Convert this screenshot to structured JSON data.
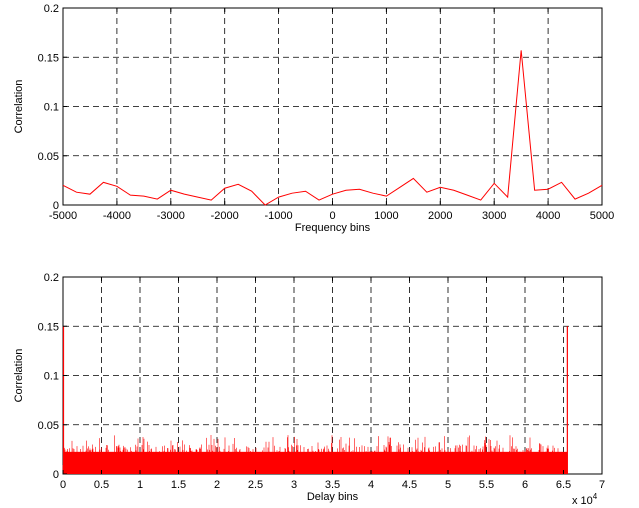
{
  "colors": {
    "series": "#ff0000",
    "axis": "#000000",
    "grid": "#000000",
    "background": "#ffffff"
  },
  "chart_data": [
    {
      "type": "line",
      "title": "",
      "xlabel": "Frequency bins",
      "ylabel": "Correlation",
      "xlim": [
        -5000,
        5000
      ],
      "ylim": [
        0,
        0.2
      ],
      "xticks": [
        -5000,
        -4000,
        -3000,
        -2000,
        -1000,
        0,
        1000,
        2000,
        3000,
        4000,
        5000
      ],
      "xtick_labels": [
        "-5000",
        "-4000",
        "-3000",
        "-2000",
        "-1000",
        "0",
        "1000",
        "2000",
        "3000",
        "4000",
        "5000"
      ],
      "yticks": [
        0,
        0.05,
        0.1,
        0.15,
        0.2
      ],
      "ytick_labels": [
        "0",
        "0.05",
        "0.1",
        "0.15",
        "0.2"
      ],
      "grid": true,
      "grid_style": "dashed",
      "series": [
        {
          "color": "#ff0000",
          "x": [
            -5000,
            -4750,
            -4500,
            -4250,
            -4000,
            -3750,
            -3500,
            -3250,
            -3000,
            -2750,
            -2500,
            -2250,
            -2000,
            -1750,
            -1500,
            -1250,
            -1000,
            -750,
            -500,
            -250,
            0,
            250,
            500,
            750,
            1000,
            1250,
            1500,
            1750,
            2000,
            2250,
            2500,
            2750,
            3000,
            3250,
            3500,
            3750,
            4000,
            4250,
            4500,
            4750,
            5000
          ],
          "y": [
            0.02,
            0.013,
            0.011,
            0.023,
            0.019,
            0.01,
            0.009,
            0.006,
            0.015,
            0.011,
            0.008,
            0.005,
            0.017,
            0.021,
            0.014,
            0.0,
            0.008,
            0.012,
            0.014,
            0.005,
            0.011,
            0.015,
            0.016,
            0.012,
            0.009,
            0.018,
            0.027,
            0.013,
            0.018,
            0.015,
            0.01,
            0.005,
            0.022,
            0.008,
            0.157,
            0.015,
            0.016,
            0.023,
            0.006,
            0.012,
            0.02
          ]
        }
      ]
    },
    {
      "type": "line",
      "title": "",
      "xlabel": "Delay bins",
      "ylabel": "Correlation",
      "xlim": [
        0,
        70000
      ],
      "ylim": [
        0,
        0.2
      ],
      "xticks": [
        0,
        5000,
        10000,
        15000,
        20000,
        25000,
        30000,
        35000,
        40000,
        45000,
        50000,
        55000,
        60000,
        65000,
        70000
      ],
      "xtick_labels": [
        "0",
        "0.5",
        "1",
        "1.5",
        "2",
        "2.5",
        "3",
        "3.5",
        "4",
        "4.5",
        "5",
        "5.5",
        "6",
        "6.5",
        "7"
      ],
      "x_multiplier_label": "x 10",
      "x_multiplier_exponent": "4",
      "yticks": [
        0,
        0.05,
        0.1,
        0.15,
        0.2
      ],
      "ytick_labels": [
        "0",
        "0.05",
        "0.1",
        "0.15",
        "0.2"
      ],
      "grid": true,
      "grid_style": "dashed",
      "series": [
        {
          "color": "#ff0000",
          "x_range": [
            0,
            65536
          ],
          "noise_floor_max": 0.03,
          "noise_peak_max": 0.04,
          "peaks": [
            {
              "x": 0,
              "y": 0.15
            },
            {
              "x": 65500,
              "y": 0.15
            }
          ]
        }
      ]
    }
  ]
}
